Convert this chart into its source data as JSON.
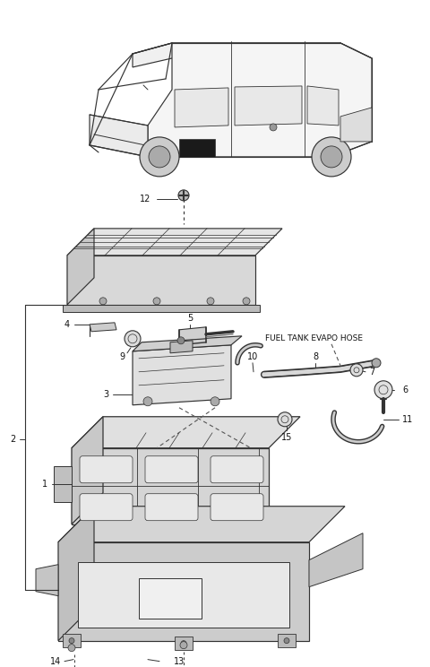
{
  "bg_color": "#ffffff",
  "line_color": "#333333",
  "label_color": "#111111",
  "fig_width": 4.8,
  "fig_height": 7.44,
  "dpi": 100,
  "label_fs": 7.0,
  "fuel_tank_label": "FUEL TANK EVAPO HOSE"
}
